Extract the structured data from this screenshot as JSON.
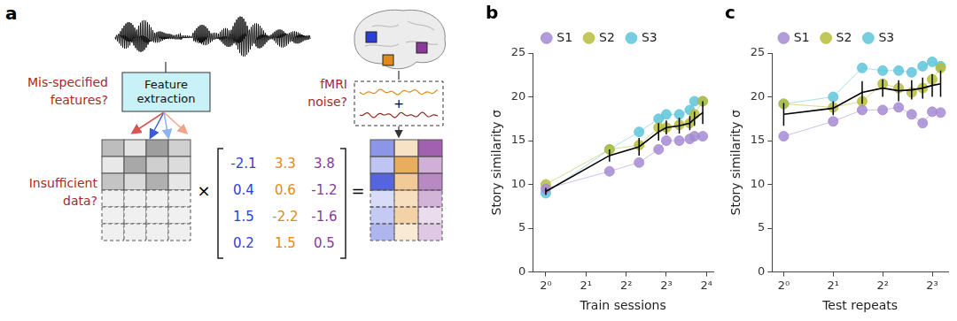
{
  "diagram": {
    "panel": "a",
    "labels": {
      "features": "Mis-specified features?",
      "extraction": "Feature extraction",
      "noise": "fMRI noise?",
      "data": "Insufficient data?"
    },
    "operators": {
      "times": "×",
      "equals": "=",
      "plus": "+"
    },
    "weights": {
      "colors": [
        "#2b3fd6",
        "#e08a1a",
        "#8b3a9c"
      ],
      "rows": [
        [
          -2.1,
          3.3,
          3.8
        ],
        [
          0.4,
          0.6,
          -1.2
        ],
        [
          1.5,
          -2.2,
          -1.6
        ],
        [
          0.2,
          1.5,
          0.5
        ]
      ]
    }
  },
  "chart_data": [
    {
      "panel": "b",
      "type": "line",
      "x_label": "Train sessions",
      "y_label": "Story similarity σ",
      "log": "x",
      "grid": false,
      "legend": "top",
      "x": [
        1,
        3,
        5,
        7,
        8,
        10,
        12,
        13,
        15
      ],
      "xlim": [
        0.8,
        18
      ],
      "xticks": [
        {
          "value": 1,
          "label": "2⁰"
        },
        {
          "value": 2,
          "label": "2¹"
        },
        {
          "value": 4,
          "label": "2²"
        },
        {
          "value": 8,
          "label": "2³"
        },
        {
          "value": 16,
          "label": "2⁴"
        }
      ],
      "ylim": [
        0,
        25
      ],
      "yticks": [
        0,
        5,
        10,
        15,
        20,
        25
      ],
      "series": [
        {
          "name": "S1",
          "color": "#a68bd3",
          "marker": "circle",
          "values": [
            9.5,
            11.5,
            12.5,
            14,
            15,
            15,
            15.2,
            15.5,
            15.5
          ]
        },
        {
          "name": "S2",
          "color": "#b7bd3c",
          "marker": "circle",
          "values": [
            10,
            14,
            14.5,
            16.5,
            16.5,
            16.8,
            17,
            18,
            19.5
          ]
        },
        {
          "name": "S3",
          "color": "#5ec6da",
          "marker": "circle",
          "values": [
            9,
            14,
            16,
            17.5,
            18,
            18,
            18.5,
            19.5,
            19.5
          ]
        },
        {
          "color": "#000000",
          "marker": "none",
          "values": [
            9.2,
            13.3,
            14.3,
            16,
            16.5,
            16.7,
            17,
            17.5,
            18.2
          ],
          "errors": [
            0.4,
            0.7,
            1,
            1,
            0.8,
            0.9,
            0.8,
            0.8,
            1.3
          ]
        }
      ]
    },
    {
      "panel": "c",
      "type": "line",
      "x_label": "Test repeats",
      "y_label": "Story similarity σ",
      "log": "x",
      "grid": false,
      "legend": "top",
      "x": [
        1,
        2,
        3,
        4,
        5,
        6,
        7,
        8,
        9
      ],
      "xlim": [
        0.85,
        10
      ],
      "xticks": [
        {
          "value": 1,
          "label": "2⁰"
        },
        {
          "value": 2,
          "label": "2¹"
        },
        {
          "value": 4,
          "label": "2²"
        },
        {
          "value": 8,
          "label": "2³"
        }
      ],
      "ylim": [
        0,
        25
      ],
      "yticks": [
        0,
        5,
        10,
        15,
        20,
        25
      ],
      "series": [
        {
          "name": "S1",
          "color": "#a68bd3",
          "marker": "circle",
          "values": [
            15.5,
            17.2,
            18.5,
            18.5,
            18.8,
            18,
            17,
            18.3,
            18.2
          ]
        },
        {
          "name": "S2",
          "color": "#b7bd3c",
          "marker": "circle",
          "values": [
            19.2,
            18.8,
            19.5,
            21.5,
            21,
            20.5,
            21,
            22,
            23.3
          ]
        },
        {
          "name": "S3",
          "color": "#5ec6da",
          "marker": "circle",
          "values": [
            19.2,
            20,
            23.3,
            23,
            23,
            22.8,
            23.5,
            24,
            23.5
          ]
        },
        {
          "color": "#000000",
          "marker": "none",
          "values": [
            18,
            18.7,
            20.5,
            21,
            20.7,
            20.8,
            21,
            21.3,
            21.5
          ],
          "errors": [
            1.3,
            0.8,
            1.3,
            1,
            1.2,
            1.1,
            1.2,
            1.3,
            1.5
          ]
        }
      ]
    }
  ]
}
